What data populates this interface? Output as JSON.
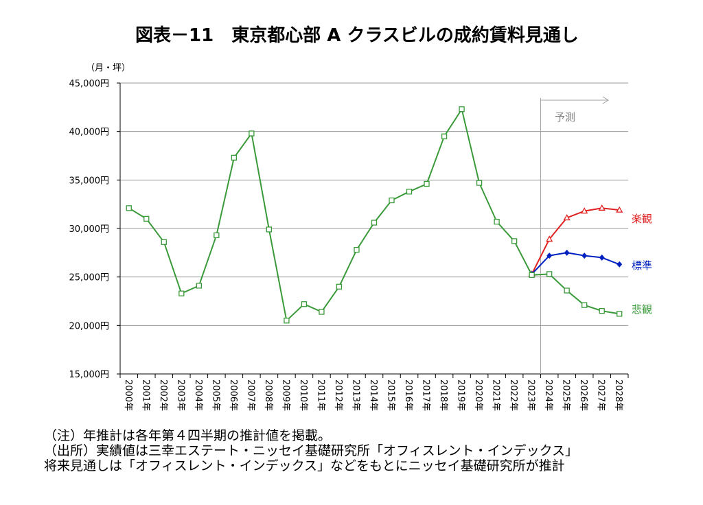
{
  "chart_data": {
    "type": "line",
    "title": "図表－11　東京都心部 A クラスビルの成約賃料見通し",
    "ylabel": "（月・坪）",
    "ylim": [
      15000,
      45000
    ],
    "yticks": [
      "45,000円",
      "40,000円",
      "35,000円",
      "30,000円",
      "25,000円",
      "20,000円",
      "15,000円"
    ],
    "categories": [
      "2000年",
      "2001年",
      "2002年",
      "2003年",
      "2004年",
      "2005年",
      "2006年",
      "2007年",
      "2008年",
      "2009年",
      "2010年",
      "2011年",
      "2012年",
      "2013年",
      "2014年",
      "2015年",
      "2016年",
      "2017年",
      "2018年",
      "2019年",
      "2020年",
      "2021年",
      "2022年",
      "2023年",
      "2024年",
      "2025年",
      "2026年",
      "2027年",
      "2028年"
    ],
    "forecast_label": "予測",
    "forecast_start": "2023年",
    "grid": "horizontal",
    "series": [
      {
        "name": "悲観",
        "color": "#3a9a3a",
        "marker": "open-square",
        "values": [
          32100,
          31000,
          28600,
          23300,
          24100,
          29300,
          37300,
          39800,
          29900,
          20500,
          22200,
          21400,
          24000,
          27800,
          30600,
          32900,
          33800,
          34600,
          39500,
          42300,
          34700,
          30700,
          28700,
          25200,
          25300,
          23600,
          22100,
          21500,
          21200
        ]
      },
      {
        "name": "標準",
        "color": "#0020c0",
        "marker": "diamond",
        "values": [
          null,
          null,
          null,
          null,
          null,
          null,
          null,
          null,
          null,
          null,
          null,
          null,
          null,
          null,
          null,
          null,
          null,
          null,
          null,
          null,
          null,
          null,
          null,
          25300,
          27200,
          27500,
          27200,
          27000,
          26300
        ]
      },
      {
        "name": "楽観",
        "color": "#e02020",
        "marker": "open-triangle",
        "values": [
          null,
          null,
          null,
          null,
          null,
          null,
          null,
          null,
          null,
          null,
          null,
          null,
          null,
          null,
          null,
          null,
          null,
          null,
          null,
          null,
          null,
          null,
          null,
          25300,
          28900,
          31100,
          31800,
          32100,
          31900
        ]
      }
    ]
  },
  "notes": [
    "（注）年推計は各年第４四半期の推計値を掲載。",
    "（出所）実績値は三幸エステート・ニッセイ基礎研究所「オフィスレント・インデックス」",
    "将来見通しは「オフィスレント・インデックス」などをもとにニッセイ基礎研究所が推計"
  ]
}
